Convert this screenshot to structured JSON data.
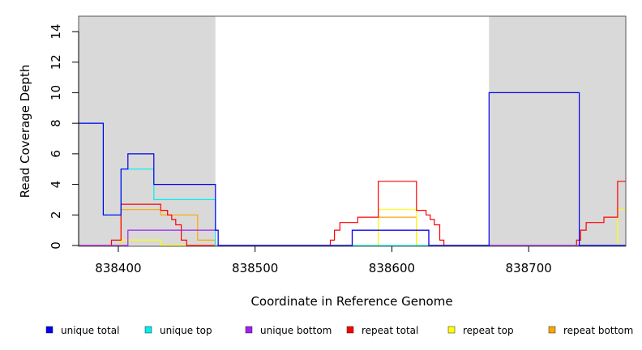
{
  "chart_data": {
    "type": "line",
    "line_style": "step",
    "title": "",
    "xlabel": "Coordinate in Reference Genome",
    "ylabel": "Read Coverage Depth",
    "xlim": [
      838371,
      838771
    ],
    "ylim": [
      0,
      15
    ],
    "x_ticks": [
      838400,
      838500,
      838600,
      838700
    ],
    "x_tick_labels": [
      "838400",
      "838500",
      "838600",
      "838700"
    ],
    "y_ticks": [
      0,
      2,
      4,
      6,
      8,
      10,
      12,
      14
    ],
    "y_tick_labels": [
      "0",
      "2",
      "4",
      "6",
      "8",
      "10",
      "12",
      "14"
    ],
    "shaded_regions": [
      {
        "x0": 838371,
        "x1": 838471,
        "color": "#d9d9d9"
      },
      {
        "x0": 838671,
        "x1": 838771,
        "color": "#d9d9d9"
      }
    ],
    "legend_position": "bottom",
    "series": [
      {
        "name": "unique total",
        "color": "#0000ee",
        "x": [
          838371,
          838389,
          838389,
          838402,
          838402,
          838407,
          838407,
          838426,
          838426,
          838471,
          838471,
          838473,
          838473,
          838571,
          838571,
          838577,
          838577,
          838627,
          838627,
          838671,
          838671,
          838737,
          838737,
          838771
        ],
        "y": [
          8,
          8,
          2,
          2,
          5,
          5,
          6,
          6,
          4,
          4,
          1,
          1,
          0,
          0,
          1,
          1,
          1,
          1,
          0,
          0,
          10,
          10,
          0,
          0
        ]
      },
      {
        "name": "unique top",
        "color": "#00eeee",
        "x": [
          838371,
          838389,
          838389,
          838402,
          838402,
          838426,
          838426,
          838471,
          838471,
          838771
        ],
        "y": [
          8,
          8,
          2,
          2,
          5,
          5,
          3,
          3,
          0,
          0
        ]
      },
      {
        "name": "unique bottom",
        "color": "#a020f0",
        "x": [
          838371,
          838407,
          838407,
          838473,
          838473,
          838571,
          838571,
          838627,
          838627,
          838771
        ],
        "y": [
          0,
          0,
          1,
          1,
          0,
          0,
          1,
          1,
          0,
          0
        ]
      },
      {
        "name": "repeat total",
        "color": "#ff0000",
        "x": [
          838371,
          838395,
          838395,
          838402,
          838402,
          838431,
          838431,
          838436,
          838436,
          838439,
          838439,
          838442,
          838442,
          838446,
          838446,
          838450,
          838450,
          838458,
          838458,
          838471,
          838471,
          838555,
          838555,
          838558,
          838558,
          838562,
          838562,
          838575,
          838575,
          838590,
          838590,
          838618,
          838618,
          838625,
          838625,
          838628,
          838628,
          838631,
          838631,
          838635,
          838635,
          838638,
          838638,
          838646,
          838646,
          838735,
          838735,
          838738,
          838738,
          838742,
          838742,
          838755,
          838755,
          838765,
          838765,
          838771
        ],
        "y": [
          0,
          0,
          0.35,
          0.35,
          2.7,
          2.7,
          2.3,
          2.3,
          2.0,
          2.0,
          1.7,
          1.7,
          1.35,
          1.35,
          0.35,
          0.35,
          0,
          0,
          0,
          0,
          0,
          0,
          0.35,
          0.35,
          1.0,
          1.0,
          1.5,
          1.5,
          1.85,
          1.85,
          4.2,
          4.2,
          2.3,
          2.3,
          2.0,
          2.0,
          1.7,
          1.7,
          1.35,
          1.35,
          0.35,
          0.35,
          0,
          0,
          0,
          0,
          0.35,
          0.35,
          1.0,
          1.0,
          1.5,
          1.5,
          1.85,
          1.85,
          4.2,
          4.2
        ]
      },
      {
        "name": "repeat top",
        "color": "#ffff00",
        "x": [
          838371,
          838402,
          838402,
          838431,
          838431,
          838471,
          838471,
          838590,
          838590,
          838618,
          838618,
          838765,
          838765,
          838771
        ],
        "y": [
          0,
          0,
          0.35,
          0.35,
          0,
          0,
          0,
          0,
          2.35,
          2.35,
          0,
          0,
          2.35,
          2.35
        ]
      },
      {
        "name": "repeat bottom",
        "color": "#ffa500",
        "x": [
          838371,
          838402,
          838402,
          838431,
          838431,
          838458,
          838458,
          838471,
          838471,
          838590,
          838590,
          838618,
          838618,
          838771
        ],
        "y": [
          0,
          0,
          2.35,
          2.35,
          2.0,
          2.0,
          0.35,
          0.35,
          0,
          0,
          1.85,
          1.85,
          0,
          0
        ]
      }
    ]
  }
}
